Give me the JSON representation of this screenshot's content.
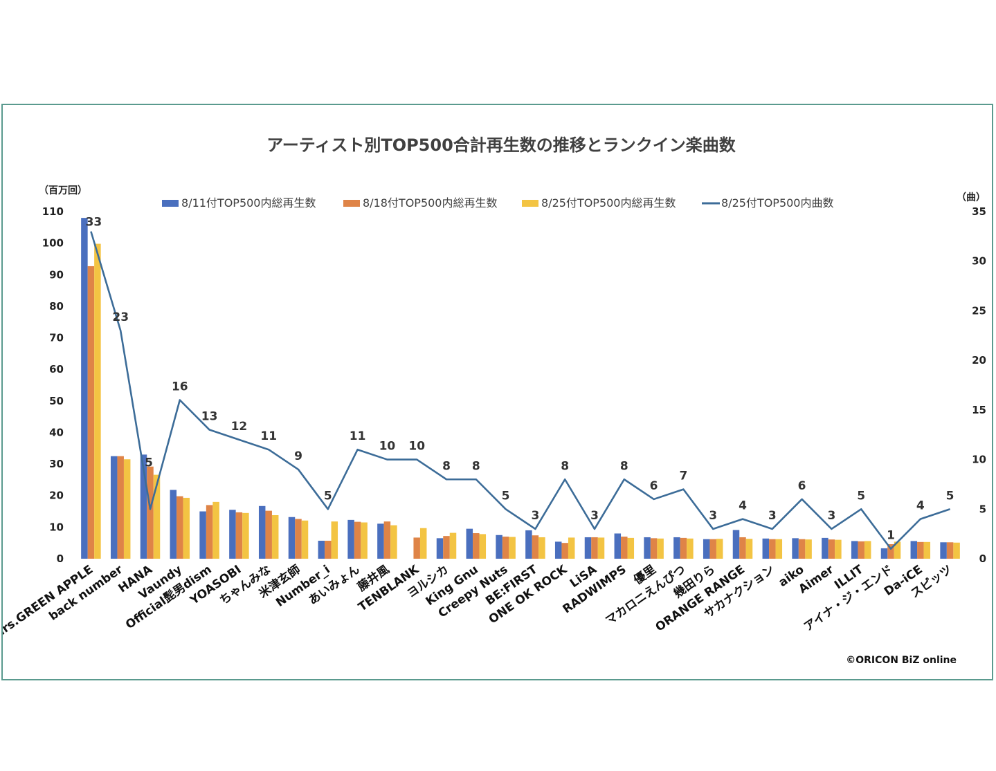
{
  "chart_data": {
    "type": "bar",
    "title": "アーティスト別TOP500合計再生数の推移とランクイン楽曲数",
    "y_left_unit": "（百万回）",
    "y_right_unit": "（曲）",
    "y_left_ticks": [
      "0",
      "10",
      "20",
      "30",
      "40",
      "50",
      "60",
      "70",
      "80",
      "90",
      "100",
      "110"
    ],
    "y_right_ticks": [
      "0",
      "5",
      "10",
      "15",
      "20",
      "25",
      "30",
      "35"
    ],
    "ylim": [
      0,
      110
    ],
    "y2lim": [
      0,
      35
    ],
    "legend_position": "top",
    "grid": false,
    "categories": [
      "Mrs.GREEN APPLE",
      "back number",
      "HANA",
      "Vaundy",
      "Official髭男dism",
      "YOASOBI",
      "ちゃんみな",
      "米津玄師",
      "Number_i",
      "あいみょん",
      "藤井風",
      "TENBLANK",
      "ヨルシカ",
      "King Gnu",
      "Creepy Nuts",
      "BE:FIRST",
      "ONE OK ROCK",
      "LiSA",
      "RADWIMPS",
      "優里",
      "マカロニえんぴつ",
      "幾田りら",
      "ORANGE RANGE",
      "サカナクション",
      "aiko",
      "Aimer",
      "ILLIT",
      "アイナ・ジ・エンド",
      "Da-iCE",
      "スピッツ"
    ],
    "series": [
      {
        "name": "8/11付TOP500内総再生数",
        "color": "#4a6fbe",
        "kind": "bar",
        "values": [
          108,
          32.5,
          33,
          21.8,
          15,
          15.5,
          16.7,
          13.2,
          5.7,
          12.3,
          11.1,
          0,
          6.5,
          9.5,
          7.5,
          9,
          5.4,
          6.8,
          8,
          6.8,
          6.8,
          6.2,
          9.1,
          6.4,
          6.5,
          6.6,
          5.6,
          3.3,
          5.6,
          5.2
        ]
      },
      {
        "name": "8/18付TOP500内総再生数",
        "color": "#df8447",
        "kind": "bar",
        "values": [
          92.7,
          32.5,
          29.2,
          19.8,
          17,
          14.7,
          15.2,
          12.6,
          5.7,
          11.7,
          11.8,
          6.7,
          7.2,
          8.1,
          7,
          7.4,
          5,
          6.8,
          7,
          6.5,
          6.6,
          6.2,
          6.8,
          6.2,
          6.2,
          6.1,
          5.5,
          4.6,
          5.3,
          5.2
        ]
      },
      {
        "name": "8/25付TOP500内総再生数",
        "color": "#f3c443",
        "kind": "bar",
        "values": [
          99.8,
          31.5,
          26.6,
          19.3,
          18,
          14.5,
          13.8,
          12.1,
          11.8,
          11.5,
          10.6,
          9.7,
          8.2,
          7.8,
          6.9,
          6.8,
          6.7,
          6.7,
          6.6,
          6.4,
          6.4,
          6.3,
          6.3,
          6.2,
          6.1,
          6,
          5.6,
          5.4,
          5.3,
          5.1
        ]
      },
      {
        "name": "8/25付TOP500内曲数",
        "color": "#3c6c98",
        "kind": "line",
        "axis": "right",
        "values": [
          33,
          23,
          5,
          16,
          13,
          12,
          11,
          9,
          5,
          11,
          10,
          10,
          8,
          8,
          5,
          3,
          8,
          3,
          8,
          6,
          7,
          3,
          4,
          3,
          6,
          3,
          5,
          1,
          4,
          5
        ]
      }
    ]
  },
  "credit": "©ORICON BiZ online"
}
